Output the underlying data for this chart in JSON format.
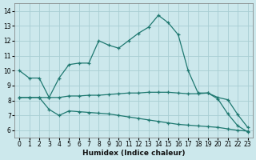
{
  "xlabel": "Humidex (Indice chaleur)",
  "bg_color": "#cce8ec",
  "grid_color": "#a8cdd2",
  "line_color": "#1e7870",
  "xlim": [
    -0.5,
    23.5
  ],
  "ylim": [
    5.5,
    14.5
  ],
  "xticks": [
    0,
    1,
    2,
    3,
    4,
    5,
    6,
    7,
    8,
    9,
    10,
    11,
    12,
    13,
    14,
    15,
    16,
    17,
    18,
    19,
    20,
    21,
    22,
    23
  ],
  "yticks": [
    6,
    7,
    8,
    9,
    10,
    11,
    12,
    13,
    14
  ],
  "line1_x": [
    0,
    1,
    2,
    3,
    4,
    5,
    6,
    7,
    8,
    9,
    10,
    11,
    12,
    13,
    14,
    15,
    16,
    17,
    18,
    19,
    20,
    21,
    22,
    23
  ],
  "line1_y": [
    10.0,
    9.5,
    9.5,
    8.2,
    9.5,
    10.4,
    10.5,
    10.5,
    12.0,
    11.7,
    11.5,
    12.0,
    12.5,
    12.9,
    13.7,
    13.2,
    12.4,
    10.0,
    8.5,
    8.5,
    8.1,
    7.1,
    6.3,
    5.9
  ],
  "line2_x": [
    0,
    1,
    2,
    3,
    4,
    5,
    6,
    7,
    8,
    9,
    10,
    11,
    12,
    13,
    14,
    15,
    16,
    17,
    18,
    19,
    20,
    21,
    22,
    23
  ],
  "line2_y": [
    8.2,
    8.2,
    8.2,
    8.2,
    8.2,
    8.3,
    8.3,
    8.35,
    8.35,
    8.4,
    8.45,
    8.5,
    8.5,
    8.55,
    8.55,
    8.55,
    8.5,
    8.45,
    8.45,
    8.5,
    8.2,
    8.05,
    7.05,
    6.2
  ],
  "line3_x": [
    0,
    1,
    2,
    3,
    4,
    5,
    6,
    7,
    8,
    9,
    10,
    11,
    12,
    13,
    14,
    15,
    16,
    17,
    18,
    19,
    20,
    21,
    22,
    23
  ],
  "line3_y": [
    8.2,
    8.2,
    8.2,
    7.4,
    7.0,
    7.3,
    7.25,
    7.2,
    7.15,
    7.1,
    7.0,
    6.9,
    6.8,
    6.7,
    6.6,
    6.5,
    6.4,
    6.35,
    6.3,
    6.25,
    6.2,
    6.1,
    6.0,
    5.95
  ],
  "markersize": 3.5,
  "linewidth": 0.9
}
